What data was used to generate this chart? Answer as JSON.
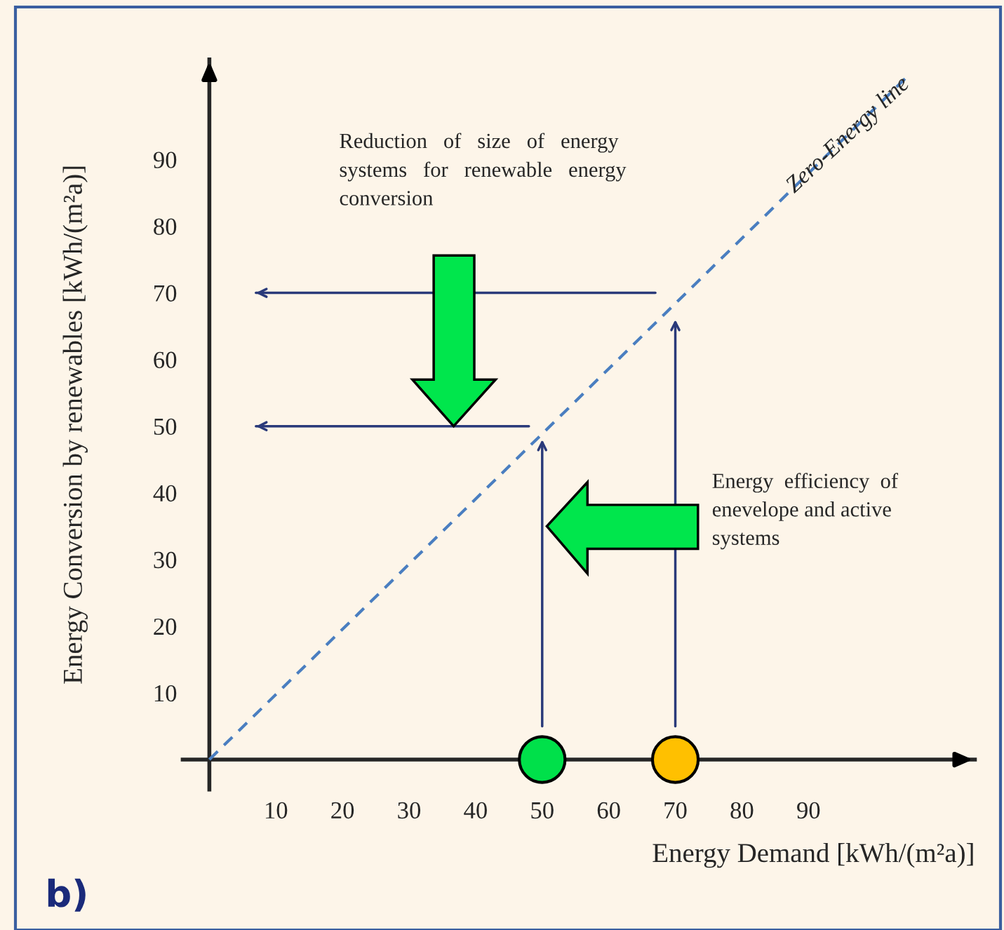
{
  "chart_data": {
    "type": "scatter",
    "xlabel": "Energy Demand [kWh/(m²a)]",
    "ylabel": "Energy Conversion by renewables [kWh/(m²a)]",
    "xlim": [
      -4,
      115
    ],
    "ylim": [
      -4.5,
      105
    ],
    "xticks": [
      10,
      20,
      30,
      40,
      50,
      60,
      70,
      80,
      90
    ],
    "yticks": [
      10,
      20,
      30,
      40,
      50,
      60,
      70,
      80,
      90
    ],
    "grid": false,
    "legend": false,
    "series": [
      {
        "x": [
          50,
          70
        ],
        "values": [
          0,
          0
        ],
        "colors": [
          "#00e04a",
          "#ffc000"
        ],
        "marker": "circle"
      },
      {
        "type": "line",
        "name": "Zero-Energy line",
        "x": [
          0,
          105
        ],
        "values": [
          0,
          102.6
        ],
        "color": "#4a7ec0",
        "line_style": "dashed"
      },
      {
        "type": "line",
        "x": [
          67,
          7
        ],
        "values": [
          70,
          70
        ],
        "color": "#2a3a7a",
        "line_style": "solid"
      },
      {
        "type": "line",
        "x": [
          48,
          7
        ],
        "values": [
          50,
          50
        ],
        "color": "#2a3a7a",
        "line_style": "solid"
      }
    ],
    "annotations": [
      "Reduction   of   size   of   energy\nsystems   for   renewable   energy\nconversion",
      "Energy  efficiency  of\nenevelope and active\nsystems",
      "b)"
    ]
  }
}
